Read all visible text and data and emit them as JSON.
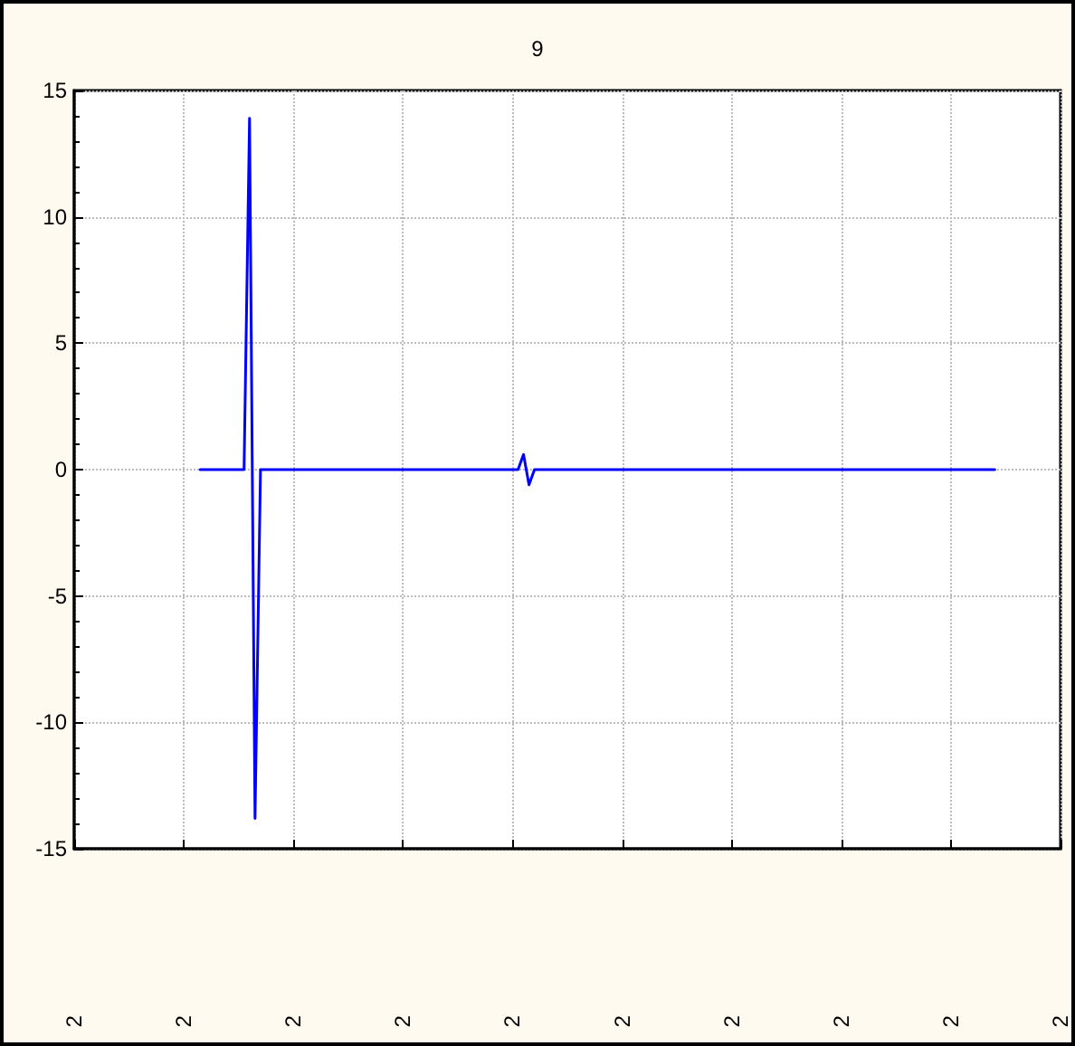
{
  "chart_data": {
    "type": "line",
    "title": "9",
    "categories": [
      "2",
      null,
      null,
      null,
      null,
      null,
      null,
      null,
      null,
      null,
      null,
      null,
      null,
      null,
      null,
      null,
      null,
      null,
      null,
      null,
      "2",
      null,
      null,
      null,
      null,
      null,
      null,
      null,
      null,
      null,
      null,
      null,
      null,
      null,
      null,
      null,
      null,
      null,
      null,
      null,
      "2",
      null,
      null,
      null,
      null,
      null,
      null,
      null,
      null,
      null,
      null,
      null,
      null,
      null,
      null,
      null,
      null,
      null,
      null,
      null,
      "2",
      null,
      null,
      null,
      null,
      null,
      null,
      null,
      null,
      null,
      null,
      null,
      null,
      null,
      null,
      null,
      null,
      null,
      null,
      null,
      "2",
      null,
      null,
      null,
      null,
      null,
      null,
      null,
      null,
      null,
      null,
      null,
      null,
      null,
      null,
      null,
      null,
      null,
      null,
      null,
      "2",
      null,
      null,
      null,
      null,
      null,
      null,
      null,
      null,
      null,
      null,
      null,
      null,
      null,
      null,
      null,
      null,
      null,
      null,
      null,
      "2",
      null,
      null,
      null,
      null,
      null,
      null,
      null,
      null,
      null,
      null,
      null,
      null,
      null,
      null,
      null,
      null,
      null,
      null,
      null,
      "2",
      null,
      null,
      null,
      null,
      null,
      null,
      null,
      null,
      null,
      null,
      null,
      null,
      null,
      null,
      null,
      null,
      null,
      null,
      null,
      "2",
      null,
      null,
      null,
      null,
      null,
      null,
      null,
      null,
      null,
      null,
      null,
      null,
      null,
      null,
      null,
      null,
      null,
      null,
      null,
      "2"
    ],
    "series": [
      {
        "color": "#0000ff",
        "values": [
          null,
          null,
          null,
          null,
          null,
          null,
          null,
          null,
          null,
          null,
          null,
          null,
          null,
          null,
          null,
          null,
          null,
          null,
          null,
          null,
          null,
          null,
          null,
          0,
          0,
          0,
          0,
          0,
          0,
          0,
          0,
          0,
          13.9,
          -13.8,
          0,
          0,
          0,
          0,
          0,
          0,
          0,
          0,
          0,
          0,
          0,
          0,
          0,
          0,
          0,
          0,
          0,
          0,
          0,
          0,
          0,
          0,
          0,
          0,
          0,
          0,
          0,
          0,
          0,
          0,
          0,
          0,
          0,
          0,
          0,
          0,
          0,
          0,
          0,
          0,
          0,
          0,
          0,
          0,
          0,
          0,
          0,
          0,
          0.6,
          -0.6,
          0,
          0,
          0,
          0,
          0,
          0,
          0,
          0,
          0,
          0,
          0,
          0,
          0,
          0,
          0,
          0,
          0,
          0,
          0,
          0,
          0,
          0,
          0,
          0,
          0,
          0,
          0,
          0,
          0,
          0,
          0,
          0,
          0,
          0,
          0,
          0,
          0,
          0,
          0,
          0,
          0,
          0,
          0,
          0,
          0,
          0,
          0,
          0,
          0,
          0,
          0,
          0,
          0,
          0,
          0,
          0,
          0,
          0,
          0,
          0,
          0,
          0,
          0,
          0,
          0,
          0,
          0,
          0,
          0,
          0,
          0,
          0,
          0,
          0,
          0,
          0,
          0,
          0,
          0,
          0,
          0,
          0,
          0,
          0,
          0,
          null,
          null,
          null,
          null,
          null,
          null,
          null,
          null,
          null,
          null,
          null,
          null
        ]
      }
    ],
    "ylim": [
      -15,
      15
    ],
    "yticks": [
      -15,
      -10,
      -5,
      0,
      5,
      10,
      15
    ],
    "grid": true,
    "marker": "none",
    "line_style": "solid"
  }
}
